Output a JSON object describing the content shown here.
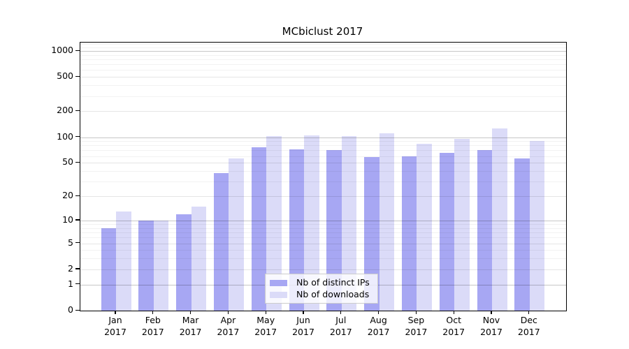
{
  "chart_data": {
    "type": "bar",
    "title": "MCbiclust 2017",
    "categories": [
      "Jan",
      "Feb",
      "Mar",
      "Apr",
      "May",
      "Jun",
      "Jul",
      "Aug",
      "Sep",
      "Oct",
      "Nov",
      "Dec"
    ],
    "year": "2017",
    "series": [
      {
        "name": "Nb of distinct IPs",
        "color": "#a7a7f3",
        "values": [
          8,
          10,
          12,
          38,
          76,
          72,
          70,
          59,
          60,
          66,
          71,
          56
        ]
      },
      {
        "name": "Nb of downloads",
        "color": "#dbdbf8",
        "values": [
          13,
          10,
          15,
          56,
          103,
          104,
          102,
          111,
          84,
          95,
          126,
          90
        ]
      }
    ],
    "y_ticks": [
      0,
      1,
      2,
      5,
      10,
      20,
      50,
      100,
      200,
      500,
      1000
    ],
    "y_scale": "log10(value+1)",
    "ylim": [
      0,
      1250
    ],
    "grid": true,
    "legend_position": "lower center"
  }
}
